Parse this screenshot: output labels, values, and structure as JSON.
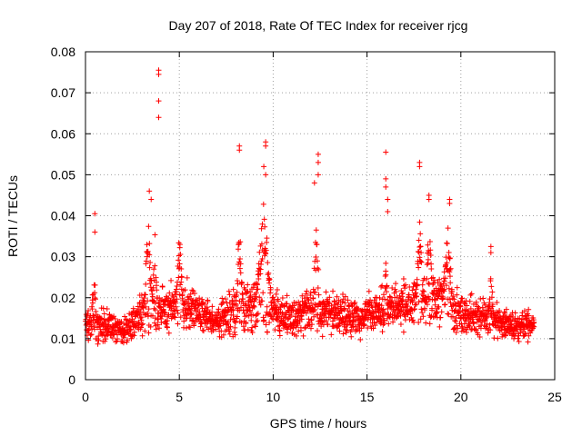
{
  "chart_data": {
    "type": "scatter",
    "title": "Day 207 of 2018, Rate Of TEC Index for receiver rjcg",
    "xlabel": "GPS time / hours",
    "ylabel": "ROTI / TECUs",
    "xlim": [
      0,
      25
    ],
    "ylim": [
      0,
      0.08
    ],
    "grid": true,
    "marker": "+",
    "color": "#ff0000",
    "x_ticks": [
      "0",
      "5",
      "10",
      "15",
      "20",
      "25"
    ],
    "y_ticks": [
      "0",
      "0.01",
      "0.02",
      "0.03",
      "0.04",
      "0.05",
      "0.06",
      "0.07",
      "0.08"
    ],
    "outliers": [
      {
        "x": 0.5,
        "y": 0.0405
      },
      {
        "x": 0.5,
        "y": 0.036
      },
      {
        "x": 3.4,
        "y": 0.046
      },
      {
        "x": 3.5,
        "y": 0.044
      },
      {
        "x": 3.9,
        "y": 0.0755
      },
      {
        "x": 3.9,
        "y": 0.0745
      },
      {
        "x": 3.9,
        "y": 0.068
      },
      {
        "x": 3.9,
        "y": 0.064
      },
      {
        "x": 8.2,
        "y": 0.057
      },
      {
        "x": 8.2,
        "y": 0.056
      },
      {
        "x": 9.6,
        "y": 0.058
      },
      {
        "x": 9.6,
        "y": 0.057
      },
      {
        "x": 9.5,
        "y": 0.052
      },
      {
        "x": 9.6,
        "y": 0.05
      },
      {
        "x": 12.4,
        "y": 0.055
      },
      {
        "x": 12.4,
        "y": 0.053
      },
      {
        "x": 12.4,
        "y": 0.05
      },
      {
        "x": 12.2,
        "y": 0.048
      },
      {
        "x": 16.0,
        "y": 0.0555
      },
      {
        "x": 16.0,
        "y": 0.049
      },
      {
        "x": 16.0,
        "y": 0.047
      },
      {
        "x": 16.1,
        "y": 0.044
      },
      {
        "x": 16.1,
        "y": 0.041
      },
      {
        "x": 17.8,
        "y": 0.053
      },
      {
        "x": 17.8,
        "y": 0.052
      },
      {
        "x": 18.3,
        "y": 0.045
      },
      {
        "x": 18.3,
        "y": 0.044
      },
      {
        "x": 19.4,
        "y": 0.044
      },
      {
        "x": 19.4,
        "y": 0.043
      },
      {
        "x": 21.6,
        "y": 0.0325
      },
      {
        "x": 21.6,
        "y": 0.031
      }
    ],
    "envelope": [
      {
        "x": 0.0,
        "center": 0.014,
        "spread": 0.0045
      },
      {
        "x": 1.0,
        "center": 0.0135,
        "spread": 0.0045
      },
      {
        "x": 2.0,
        "center": 0.0115,
        "spread": 0.004
      },
      {
        "x": 3.0,
        "center": 0.016,
        "spread": 0.0065
      },
      {
        "x": 4.0,
        "center": 0.017,
        "spread": 0.006
      },
      {
        "x": 5.0,
        "center": 0.019,
        "spread": 0.0075
      },
      {
        "x": 6.0,
        "center": 0.016,
        "spread": 0.0055
      },
      {
        "x": 7.0,
        "center": 0.0145,
        "spread": 0.005
      },
      {
        "x": 8.0,
        "center": 0.016,
        "spread": 0.007
      },
      {
        "x": 9.0,
        "center": 0.019,
        "spread": 0.0085
      },
      {
        "x": 10.0,
        "center": 0.017,
        "spread": 0.007
      },
      {
        "x": 11.0,
        "center": 0.015,
        "spread": 0.0055
      },
      {
        "x": 12.0,
        "center": 0.017,
        "spread": 0.007
      },
      {
        "x": 13.0,
        "center": 0.016,
        "spread": 0.0055
      },
      {
        "x": 14.0,
        "center": 0.015,
        "spread": 0.0055
      },
      {
        "x": 15.0,
        "center": 0.016,
        "spread": 0.0055
      },
      {
        "x": 16.0,
        "center": 0.017,
        "spread": 0.006
      },
      {
        "x": 17.0,
        "center": 0.018,
        "spread": 0.0065
      },
      {
        "x": 18.0,
        "center": 0.02,
        "spread": 0.0075
      },
      {
        "x": 19.0,
        "center": 0.019,
        "spread": 0.0075
      },
      {
        "x": 20.0,
        "center": 0.016,
        "spread": 0.006
      },
      {
        "x": 21.0,
        "center": 0.015,
        "spread": 0.0055
      },
      {
        "x": 22.0,
        "center": 0.0145,
        "spread": 0.005
      },
      {
        "x": 23.0,
        "center": 0.013,
        "spread": 0.0045
      },
      {
        "x": 23.8,
        "center": 0.013,
        "spread": 0.0045
      }
    ],
    "spikes": [
      {
        "x": 0.45,
        "top": 0.03,
        "width": 0.15
      },
      {
        "x": 3.35,
        "top": 0.042,
        "width": 0.25
      },
      {
        "x": 3.7,
        "top": 0.037,
        "width": 0.15
      },
      {
        "x": 5.0,
        "top": 0.037,
        "width": 0.2
      },
      {
        "x": 8.2,
        "top": 0.042,
        "width": 0.2
      },
      {
        "x": 9.5,
        "top": 0.045,
        "width": 0.45
      },
      {
        "x": 12.3,
        "top": 0.04,
        "width": 0.2
      },
      {
        "x": 16.0,
        "top": 0.031,
        "width": 0.1
      },
      {
        "x": 17.8,
        "top": 0.04,
        "width": 0.2
      },
      {
        "x": 18.3,
        "top": 0.042,
        "width": 0.2
      },
      {
        "x": 19.3,
        "top": 0.038,
        "width": 0.3
      },
      {
        "x": 21.6,
        "top": 0.03,
        "width": 0.15
      }
    ],
    "x_max_observed": 23.9,
    "samples_per_hour": 90
  }
}
